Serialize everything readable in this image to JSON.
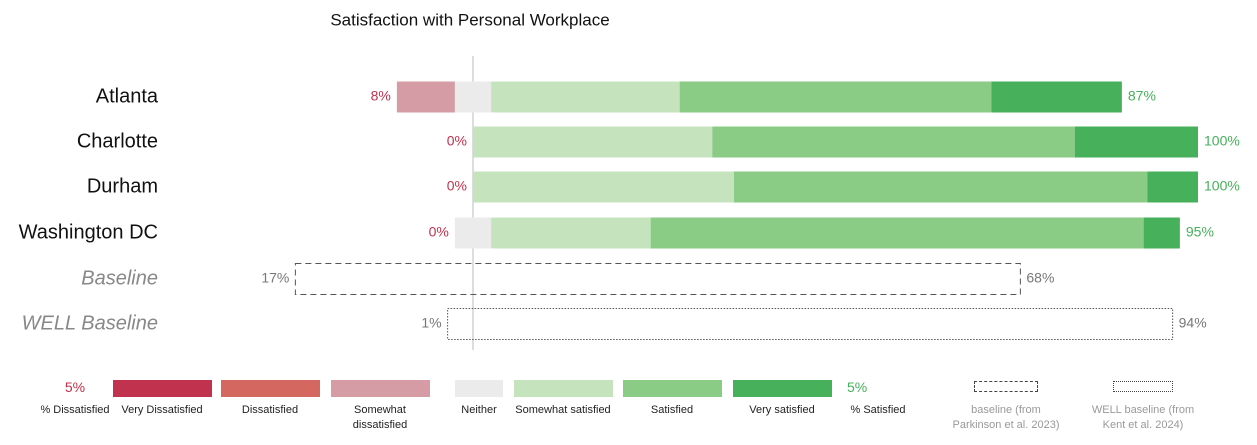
{
  "chart_data": {
    "type": "diverging_bar",
    "title": "Satisfaction with Personal Workplace",
    "categories": [
      "Atlanta",
      "Charlotte",
      "Durham",
      "Washington DC"
    ],
    "series": [
      {
        "name": "Very Dissatisfied",
        "color": "#c0324e",
        "side": "dissatisfied",
        "values": [
          0,
          0,
          0,
          0
        ]
      },
      {
        "name": "Dissatisfied",
        "color": "#d4675f",
        "side": "dissatisfied",
        "values": [
          0,
          0,
          0,
          0
        ]
      },
      {
        "name": "Somewhat dissatisfied",
        "color": "#d59ca6",
        "side": "dissatisfied",
        "values": [
          8,
          0,
          0,
          0
        ]
      },
      {
        "name": "Neither",
        "color": "#ebebeb",
        "side": "neither",
        "values": [
          5,
          0,
          0,
          5
        ]
      },
      {
        "name": "Somewhat satisfied",
        "color": "#c5e4bd",
        "side": "satisfied",
        "values": [
          26,
          33,
          36,
          22
        ]
      },
      {
        "name": "Satisfied",
        "color": "#8acb85",
        "side": "satisfied",
        "values": [
          43,
          50,
          57,
          68
        ]
      },
      {
        "name": "Very satisfied",
        "color": "#47b05a",
        "side": "satisfied",
        "values": [
          18,
          17,
          7,
          5
        ]
      }
    ],
    "totals": {
      "dissatisfied": {
        "color": "#c0324e",
        "values": [
          8,
          0,
          0,
          0
        ],
        "value_labels": [
          "8%",
          "0%",
          "0%",
          "0%"
        ]
      },
      "satisfied": {
        "color": "#47b05a",
        "values": [
          87,
          100,
          100,
          95
        ],
        "value_labels": [
          "87%",
          "100%",
          "100%",
          "95%"
        ]
      }
    },
    "baselines": [
      {
        "name": "Baseline",
        "dissatisfied": 17,
        "neither": 15,
        "satisfied": 68,
        "dissatisfied_label": "17%",
        "satisfied_label": "68%",
        "dash": "dashed",
        "legend_label": "baseline (from Parkinson et al. 2023)"
      },
      {
        "name": "WELL Baseline",
        "dissatisfied": 1,
        "neither": 5,
        "satisfied": 94,
        "dissatisfied_label": "1%",
        "satisfied_label": "94%",
        "dash": "dotted",
        "legend_label": "WELL baseline (from Kent et al. 2024)"
      }
    ],
    "legend": {
      "dissatisfied": {
        "value": 5,
        "value_label": "5%",
        "label": "% Dissatisfied"
      },
      "satisfied": {
        "value": 5,
        "value_label": "5%",
        "label": "% Satisfied"
      }
    }
  }
}
